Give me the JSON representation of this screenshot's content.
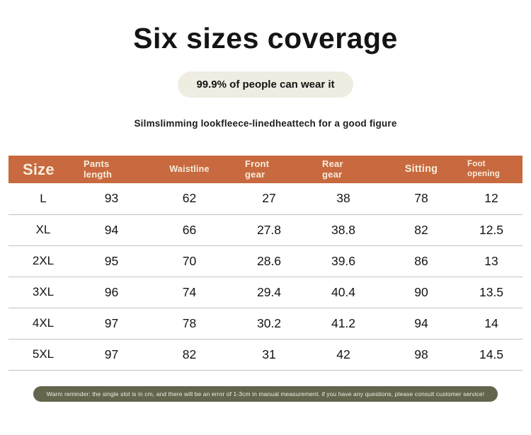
{
  "header": {
    "title": "Six sizes coverage",
    "badge": "99.9% of people can wear it",
    "subtitle": "Silmslimming lookfleece-linedheattech for a good figure"
  },
  "table": {
    "columns": [
      "Size",
      "Pants\nlength",
      "Waistline",
      "Front\ngear",
      "Rear\ngear",
      "Sitting",
      "Foot\nopening"
    ],
    "rows": [
      {
        "cells": [
          "L",
          "93",
          "62",
          "27",
          "38",
          "78",
          "12"
        ]
      },
      {
        "cells": [
          "XL",
          "94",
          "66",
          "27.8",
          "38.8",
          "82",
          "12.5"
        ]
      },
      {
        "cells": [
          "2XL",
          "95",
          "70",
          "28.6",
          "39.6",
          "86",
          "13"
        ]
      },
      {
        "cells": [
          "3XL",
          "96",
          "74",
          "29.4",
          "40.4",
          "90",
          "13.5"
        ]
      },
      {
        "cells": [
          "4XL",
          "97",
          "78",
          "30.2",
          "41.2",
          "94",
          "14"
        ]
      },
      {
        "cells": [
          "5XL",
          "97",
          "82",
          "31",
          "42",
          "98",
          "14.5"
        ]
      }
    ]
  },
  "footer": {
    "reminder": "Warm reminder: the single slot is in cm, and there will be an error of 1-3cm in manual measurement. if you have any questions, please consult customer service!"
  },
  "colors": {
    "header_bg": "#c8693f",
    "header_text": "#f7eedd",
    "badge_bg": "#efede2",
    "reminder_bg": "#65654d",
    "reminder_text": "#efeee4",
    "divider": "#c3c3c3",
    "text": "#151515"
  }
}
